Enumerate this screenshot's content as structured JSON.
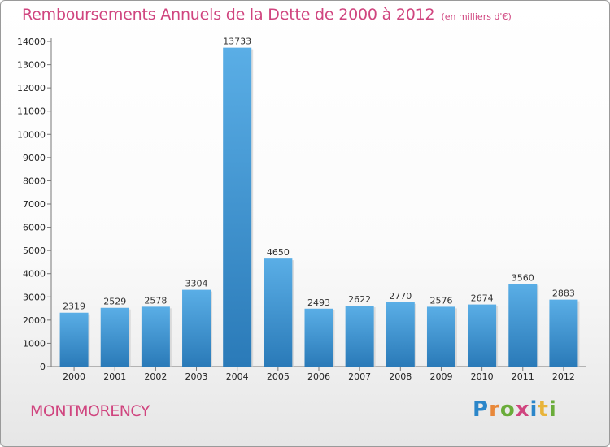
{
  "header": {
    "title": "Remboursements Annuels de la Dette de 2000 à 2012",
    "subtitle": "(en milliers d'€)"
  },
  "footer": {
    "commune": "MONTMORENCY",
    "brand": "Proxiti"
  },
  "colors": {
    "title": "#d0457f",
    "bar_light": "#5aaee6",
    "bar_dark": "#2a7ab8"
  },
  "chart_data": {
    "type": "bar",
    "title": "Remboursements Annuels de la Dette de 2000 à 2012",
    "subtitle": "(en milliers d'€)",
    "xlabel": "",
    "ylabel": "",
    "categories": [
      "2000",
      "2001",
      "2002",
      "2003",
      "2004",
      "2005",
      "2006",
      "2007",
      "2008",
      "2009",
      "2010",
      "2011",
      "2012"
    ],
    "values": [
      2319,
      2529,
      2578,
      3304,
      13733,
      4650,
      2493,
      2622,
      2770,
      2576,
      2674,
      3560,
      2883
    ],
    "ylim": [
      0,
      14000
    ],
    "yticks": [
      0,
      1000,
      2000,
      3000,
      4000,
      5000,
      6000,
      7000,
      8000,
      9000,
      10000,
      11000,
      12000,
      13000,
      14000
    ],
    "grid": false,
    "legend": "none"
  }
}
